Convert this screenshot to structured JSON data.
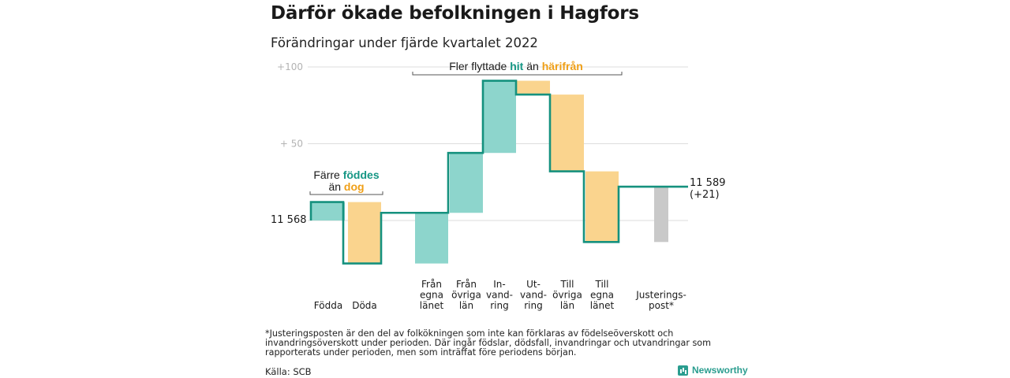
{
  "title": "Därför ökade befolkningen i Hagfors",
  "subtitle": "Förändringar under fjärde kvartalet 2022",
  "footnote": "*Justeringsposten är den del av folkökningen som inte kan förklaras av födelseöverskott och invandringsöverskott under perioden. Där ingår födslar, dödsfall, invandringar och utvandringar som rapporterats under perioden, men som inträffat före periodens början.",
  "source": "Källa: SCB",
  "brand": "Newsworthy",
  "colors": {
    "positive": "#8dd5cc",
    "negative": "#fad48e",
    "adjustment": "#c9c9c9",
    "line": "#15917e",
    "teal_text": "#159684",
    "orange_text": "#ef9f17",
    "grid": "#dddddd"
  },
  "chart_data": {
    "type": "waterfall",
    "start_value": 11568,
    "start_label": "11 568",
    "end_value": 11589,
    "end_label": "11 589",
    "end_change_label": "(+21)",
    "yticks": [
      {
        "value": 100,
        "label": "+100"
      },
      {
        "value": 50,
        "label": "+ 50"
      },
      {
        "value": 0,
        "label": ""
      }
    ],
    "ylim": [
      -30,
      100
    ],
    "steps": [
      {
        "label": [
          "Födda"
        ],
        "delta": 12,
        "kind": "positive"
      },
      {
        "label": [
          "Döda"
        ],
        "delta": -40,
        "kind": "negative"
      },
      {
        "label": [
          "Från",
          "egna",
          "länet"
        ],
        "delta": 33,
        "kind": "positive"
      },
      {
        "label": [
          "Från",
          "övriga",
          "län"
        ],
        "delta": 39,
        "kind": "positive"
      },
      {
        "label": [
          "In-",
          "vand-",
          "ring"
        ],
        "delta": 47,
        "kind": "positive"
      },
      {
        "label": [
          "Ut-",
          "vand-",
          "ring"
        ],
        "delta": -9,
        "kind": "negative"
      },
      {
        "label": [
          "Till",
          "övriga",
          "län"
        ],
        "delta": -50,
        "kind": "negative"
      },
      {
        "label": [
          "Till",
          "egna",
          "länet"
        ],
        "delta": -46,
        "kind": "negative"
      },
      {
        "label": [
          "Justerings-",
          "post*"
        ],
        "delta": 36,
        "kind": "adjustment"
      }
    ],
    "annotations": {
      "births": {
        "line1": "Färre ",
        "line1_hl": "föddes",
        "line2": "än ",
        "line2_hl": "dog"
      },
      "migration": {
        "pre": "Fler flyttade ",
        "hit": "hit",
        "mid": " än ",
        "harifran": "härifrån"
      }
    }
  }
}
